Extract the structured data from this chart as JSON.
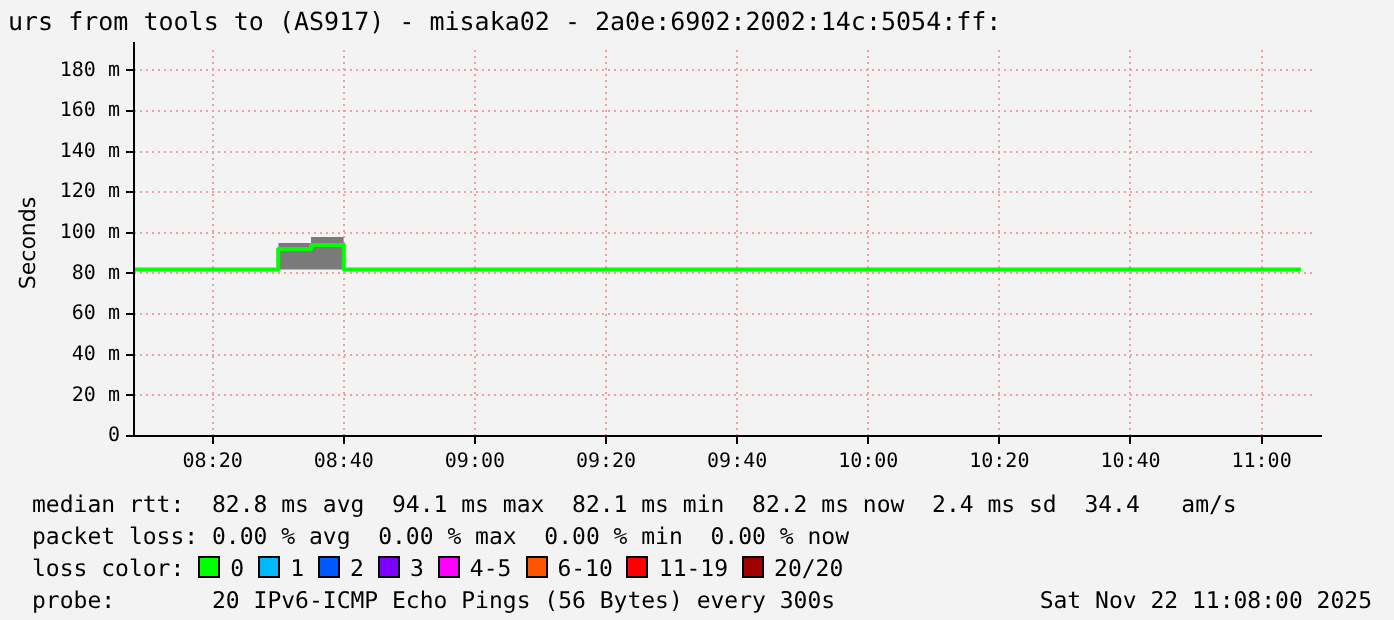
{
  "chart_data": {
    "type": "step",
    "title": "urs from tools to (AS917) - misaka02 - 2a0e:6902:2002:14c:5054:ff:",
    "ylabel": "Seconds",
    "series": [
      {
        "color": "#00ff00",
        "x": [
          8.1333,
          8.5,
          8.5833,
          8.6667,
          11.1
        ],
        "values": [
          82,
          92,
          94,
          82,
          82
        ],
        "lower": [
          null,
          82,
          82,
          82,
          null
        ],
        "upper": [
          null,
          95,
          98,
          82,
          null
        ]
      }
    ],
    "xlim": [
      8.1333,
      11.1333
    ],
    "xticks": [
      {
        "value": 8.3333,
        "label": "08:20"
      },
      {
        "value": 8.6667,
        "label": "08:40"
      },
      {
        "value": 9,
        "label": "09:00"
      },
      {
        "value": 9.3333,
        "label": "09:20"
      },
      {
        "value": 9.6667,
        "label": "09:40"
      },
      {
        "value": 10,
        "label": "10:00"
      },
      {
        "value": 10.3333,
        "label": "10:20"
      },
      {
        "value": 10.6667,
        "label": "10:40"
      },
      {
        "value": 11,
        "label": "11:00"
      }
    ],
    "ylim": [
      0,
      190
    ],
    "yticks": [
      0,
      {
        "value": 20,
        "label": "20 m"
      },
      {
        "value": 40,
        "label": "40 m"
      },
      {
        "value": 60,
        "label": "60 m"
      },
      {
        "value": 80,
        "label": "80 m"
      },
      {
        "value": 100,
        "label": "100 m"
      },
      {
        "value": 120,
        "label": "120 m"
      },
      {
        "value": 140,
        "label": "140 m"
      },
      {
        "value": 160,
        "label": "160 m"
      },
      {
        "value": 180,
        "label": "180 m"
      }
    ],
    "grid": true,
    "legend": false,
    "marker": "none",
    "line_style": "solid",
    "annotations": [
      "median rtt:  82.8 ms avg  94.1 ms max  82.1 ms min  82.2 ms now  2.4 ms sd  34.4   am/s",
      "packet loss: 0.00 % avg  0.00 % max  0.00 % min  0.00 % now",
      "loss color:",
      "0",
      "1",
      "2",
      "3",
      "4-5",
      "6-10",
      "11-19",
      "20/20",
      "probe:       20 IPv6-ICMP Echo Pings (56 Bytes) every 300s",
      "Sat Nov 22 11:08:00 2025"
    ]
  }
}
